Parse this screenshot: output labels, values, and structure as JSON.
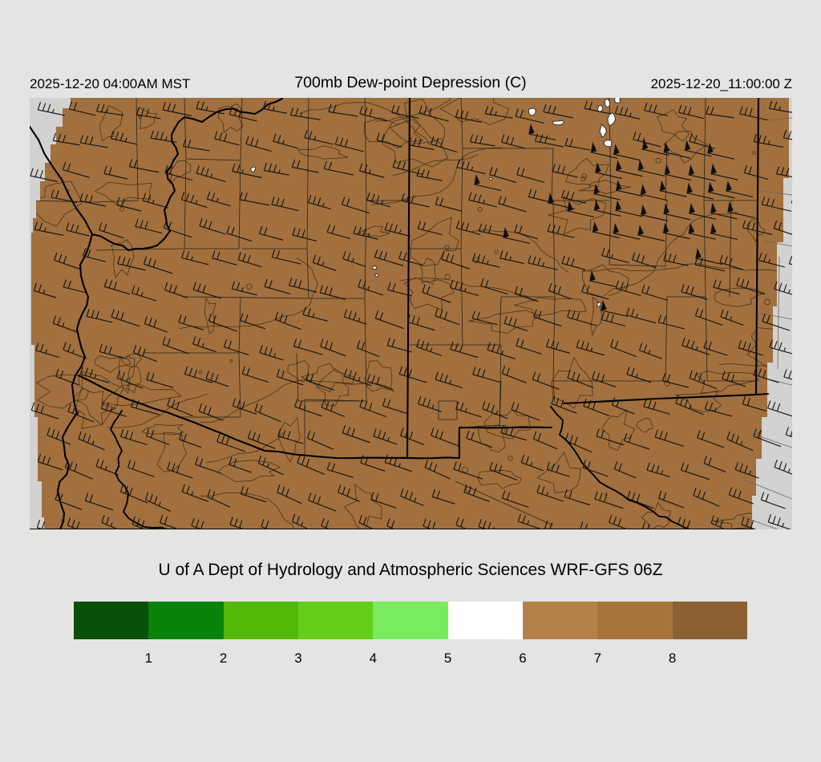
{
  "header": {
    "left_timestamp": "2025-12-20 04:00AM MST",
    "title": "700mb Dew-point Depression (C)",
    "right_timestamp": "2025-12-20_11:00:00 Z"
  },
  "attribution": "U of A Dept of Hydrology and Atmospheric Sciences WRF-GFS 06Z",
  "colorbar": {
    "tick_labels": [
      "1",
      "2",
      "3",
      "4",
      "5",
      "6",
      "7",
      "8"
    ],
    "segment_colors": [
      "#084F08",
      "#0A830A",
      "#54B906",
      "#65CF17",
      "#79EB5F",
      "#FFFFFF",
      "#B5814B",
      "#A8743E",
      "#8B6134"
    ]
  },
  "map": {
    "fill_color": "#A1703E",
    "margin_color": "#D2D2D0",
    "background_color": "#E4E4E2",
    "contour_color": "#3A2A14",
    "county_line_color": "#141414",
    "boundary_color": "#000000",
    "barb_color": "#101010",
    "patch_color": "#FFFFFF"
  },
  "chart_data": {
    "type": "heatmap",
    "title": "700mb Dew-point Depression (C)",
    "units": "C",
    "colorbar_ticks": [
      1,
      2,
      3,
      4,
      5,
      6,
      7,
      8
    ],
    "colorbar_colors": [
      "#084F08",
      "#0A830A",
      "#54B906",
      "#65CF17",
      "#79EB5F",
      "#FFFFFF",
      "#B5814B",
      "#A8743E",
      "#8B6134"
    ],
    "legend_position": "bottom",
    "field_summary": "Dew-point depression of roughly 7-8 C (brown) covers nearly the entire Arizona / New Mexico model domain; small white pockets of about 5-6 C appear over north-central New Mexico and a few isolated spots; wind barbs indicate west-southwest flow with 50+ kt pennants over northeastern New Mexico"
  }
}
